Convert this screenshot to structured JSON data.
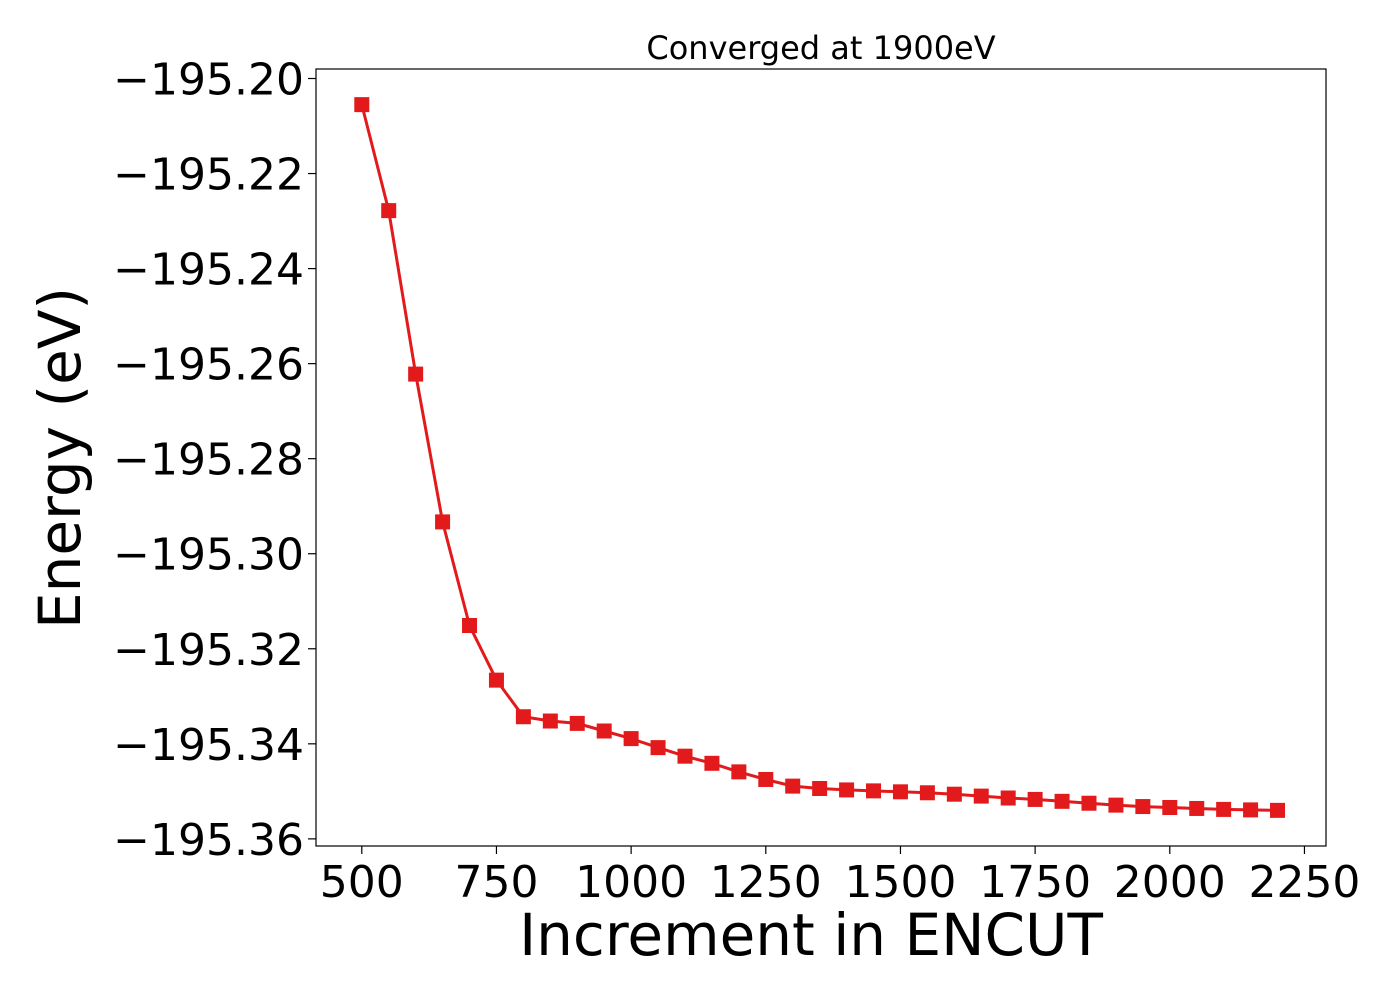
{
  "chart_data": {
    "type": "line",
    "title": "Converged at 1900eV",
    "xlabel": "Increment in ENCUT",
    "ylabel": "Energy (eV)",
    "xlim": [
      415,
      2290
    ],
    "ylim": [
      -195.3615,
      -195.198
    ],
    "xticks": [
      500,
      750,
      1000,
      1250,
      1500,
      1750,
      2000,
      2250
    ],
    "xtick_labels": [
      "500",
      "750",
      "1000",
      "1250",
      "1500",
      "1750",
      "2000",
      "2250"
    ],
    "yticks": [
      -195.2,
      -195.22,
      -195.24,
      -195.26,
      -195.28,
      -195.3,
      -195.32,
      -195.34,
      -195.36
    ],
    "ytick_labels": [
      "−195.20",
      "−195.22",
      "−195.24",
      "−195.26",
      "−195.28",
      "−195.30",
      "−195.32",
      "−195.34",
      "−195.36"
    ],
    "grid": false,
    "marker": "square",
    "color": "#e31a1c",
    "series": [
      {
        "x": [
          500,
          550,
          600,
          650,
          700,
          750,
          800,
          850,
          900,
          950,
          1000,
          1050,
          1100,
          1150,
          1200,
          1250,
          1300,
          1350,
          1400,
          1450,
          1500,
          1550,
          1600,
          1650,
          1700,
          1750,
          1800,
          1850,
          1900,
          1950,
          2000,
          2050,
          2100,
          2150,
          2200
        ],
        "y": [
          -195.2055,
          -195.2278,
          -195.2622,
          -195.2933,
          -195.3151,
          -195.3266,
          -195.3343,
          -195.3352,
          -195.3357,
          -195.3373,
          -195.3389,
          -195.3408,
          -195.3426,
          -195.3441,
          -195.3459,
          -195.3475,
          -195.3489,
          -195.3494,
          -195.3497,
          -195.3499,
          -195.3501,
          -195.3503,
          -195.3506,
          -195.351,
          -195.3514,
          -195.3517,
          -195.3521,
          -195.3525,
          -195.3529,
          -195.3532,
          -195.3534,
          -195.3536,
          -195.3538,
          -195.3539,
          -195.354
        ]
      }
    ]
  }
}
